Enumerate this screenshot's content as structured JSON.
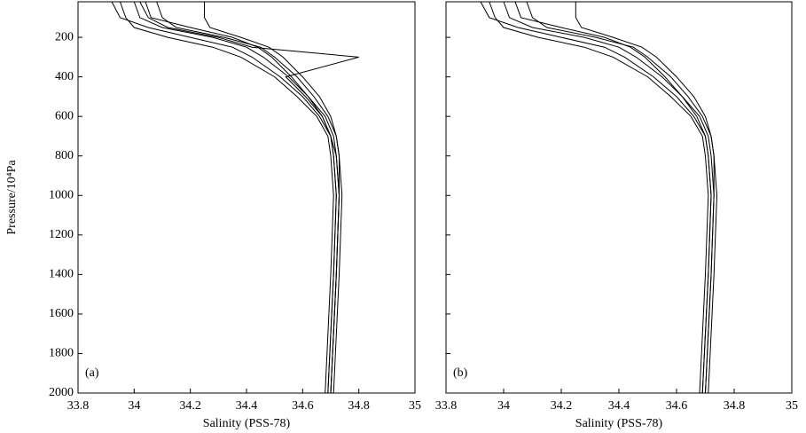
{
  "chart_data": [
    {
      "type": "line",
      "annotation": "(a)",
      "x_label": "Salinity (PSS-78)",
      "y_label": "Pressure/10⁴Pa",
      "xlim": [
        33.8,
        35
      ],
      "xticks": [
        33.8,
        34,
        34.2,
        34.4,
        34.6,
        34.8,
        35
      ],
      "ylim": [
        20,
        2000
      ],
      "y_inverted": true,
      "yticks": [
        200,
        400,
        600,
        800,
        1000,
        1200,
        1400,
        1600,
        1800,
        2000
      ],
      "y": [
        20,
        100,
        150,
        200,
        250,
        300,
        400,
        500,
        600,
        700,
        800,
        1000,
        1400,
        2000
      ],
      "series": [
        {
          "color": "#000000",
          "values": [
            33.92,
            33.95,
            34.05,
            34.2,
            34.35,
            34.42,
            34.52,
            34.6,
            34.66,
            34.7,
            34.71,
            34.72,
            34.71,
            34.69
          ]
        },
        {
          "color": "#000000",
          "values": [
            34.0,
            34.02,
            34.1,
            34.28,
            34.4,
            34.46,
            34.55,
            34.62,
            34.68,
            34.71,
            34.72,
            34.73,
            34.72,
            34.7
          ]
        },
        {
          "color": "#000000",
          "values": [
            34.08,
            34.1,
            34.15,
            34.32,
            34.45,
            34.5,
            34.58,
            34.64,
            34.69,
            34.72,
            34.73,
            34.74,
            34.73,
            34.71
          ]
        },
        {
          "color": "#000000",
          "values": [
            33.95,
            33.97,
            34.0,
            34.12,
            34.28,
            34.38,
            34.5,
            34.58,
            34.65,
            34.69,
            34.7,
            34.71,
            34.7,
            34.68
          ]
        },
        {
          "color": "#000000",
          "values": [
            34.25,
            34.25,
            34.27,
            34.38,
            34.48,
            34.53,
            34.6,
            34.66,
            34.7,
            34.72,
            34.73,
            34.73,
            34.72,
            34.7
          ]
        },
        {
          "color": "#000000",
          "values": [
            34.04,
            34.06,
            34.2,
            34.35,
            34.44,
            34.49,
            34.56,
            34.62,
            34.67,
            34.7,
            34.71,
            34.72,
            34.71,
            34.69
          ]
        },
        {
          "color": "#000000",
          "values": [
            34.02,
            34.05,
            34.12,
            34.3,
            34.42,
            34.8,
            34.54,
            34.61,
            34.67,
            34.7,
            34.72,
            34.73,
            34.72,
            34.7
          ]
        }
      ]
    },
    {
      "type": "line",
      "annotation": "(b)",
      "x_label": "Salinity (PSS-78)",
      "xlim": [
        33.8,
        35
      ],
      "xticks": [
        33.8,
        34,
        34.2,
        34.4,
        34.6,
        34.8,
        35
      ],
      "ylim": [
        20,
        2000
      ],
      "y_inverted": true,
      "yticks": [
        200,
        400,
        600,
        800,
        1000,
        1200,
        1400,
        1600,
        1800,
        2000
      ],
      "y": [
        20,
        100,
        150,
        200,
        250,
        300,
        400,
        500,
        600,
        700,
        800,
        1000,
        1400,
        2000
      ],
      "series": [
        {
          "color": "#000000",
          "values": [
            33.92,
            33.95,
            34.05,
            34.2,
            34.35,
            34.42,
            34.52,
            34.6,
            34.66,
            34.7,
            34.71,
            34.72,
            34.71,
            34.69
          ]
        },
        {
          "color": "#000000",
          "values": [
            34.0,
            34.02,
            34.1,
            34.28,
            34.4,
            34.46,
            34.55,
            34.62,
            34.68,
            34.71,
            34.72,
            34.73,
            34.72,
            34.7
          ]
        },
        {
          "color": "#000000",
          "values": [
            34.08,
            34.1,
            34.15,
            34.32,
            34.45,
            34.5,
            34.58,
            34.64,
            34.69,
            34.72,
            34.73,
            34.74,
            34.73,
            34.71
          ]
        },
        {
          "color": "#000000",
          "values": [
            33.95,
            33.97,
            34.0,
            34.12,
            34.28,
            34.38,
            34.5,
            34.58,
            34.65,
            34.69,
            34.7,
            34.71,
            34.7,
            34.68
          ]
        },
        {
          "color": "#000000",
          "values": [
            34.25,
            34.25,
            34.27,
            34.38,
            34.48,
            34.53,
            34.6,
            34.66,
            34.7,
            34.72,
            34.73,
            34.73,
            34.72,
            34.7
          ]
        },
        {
          "color": "#000000",
          "values": [
            34.04,
            34.06,
            34.2,
            34.35,
            34.44,
            34.49,
            34.56,
            34.62,
            34.67,
            34.7,
            34.71,
            34.72,
            34.71,
            34.69
          ]
        }
      ]
    }
  ]
}
